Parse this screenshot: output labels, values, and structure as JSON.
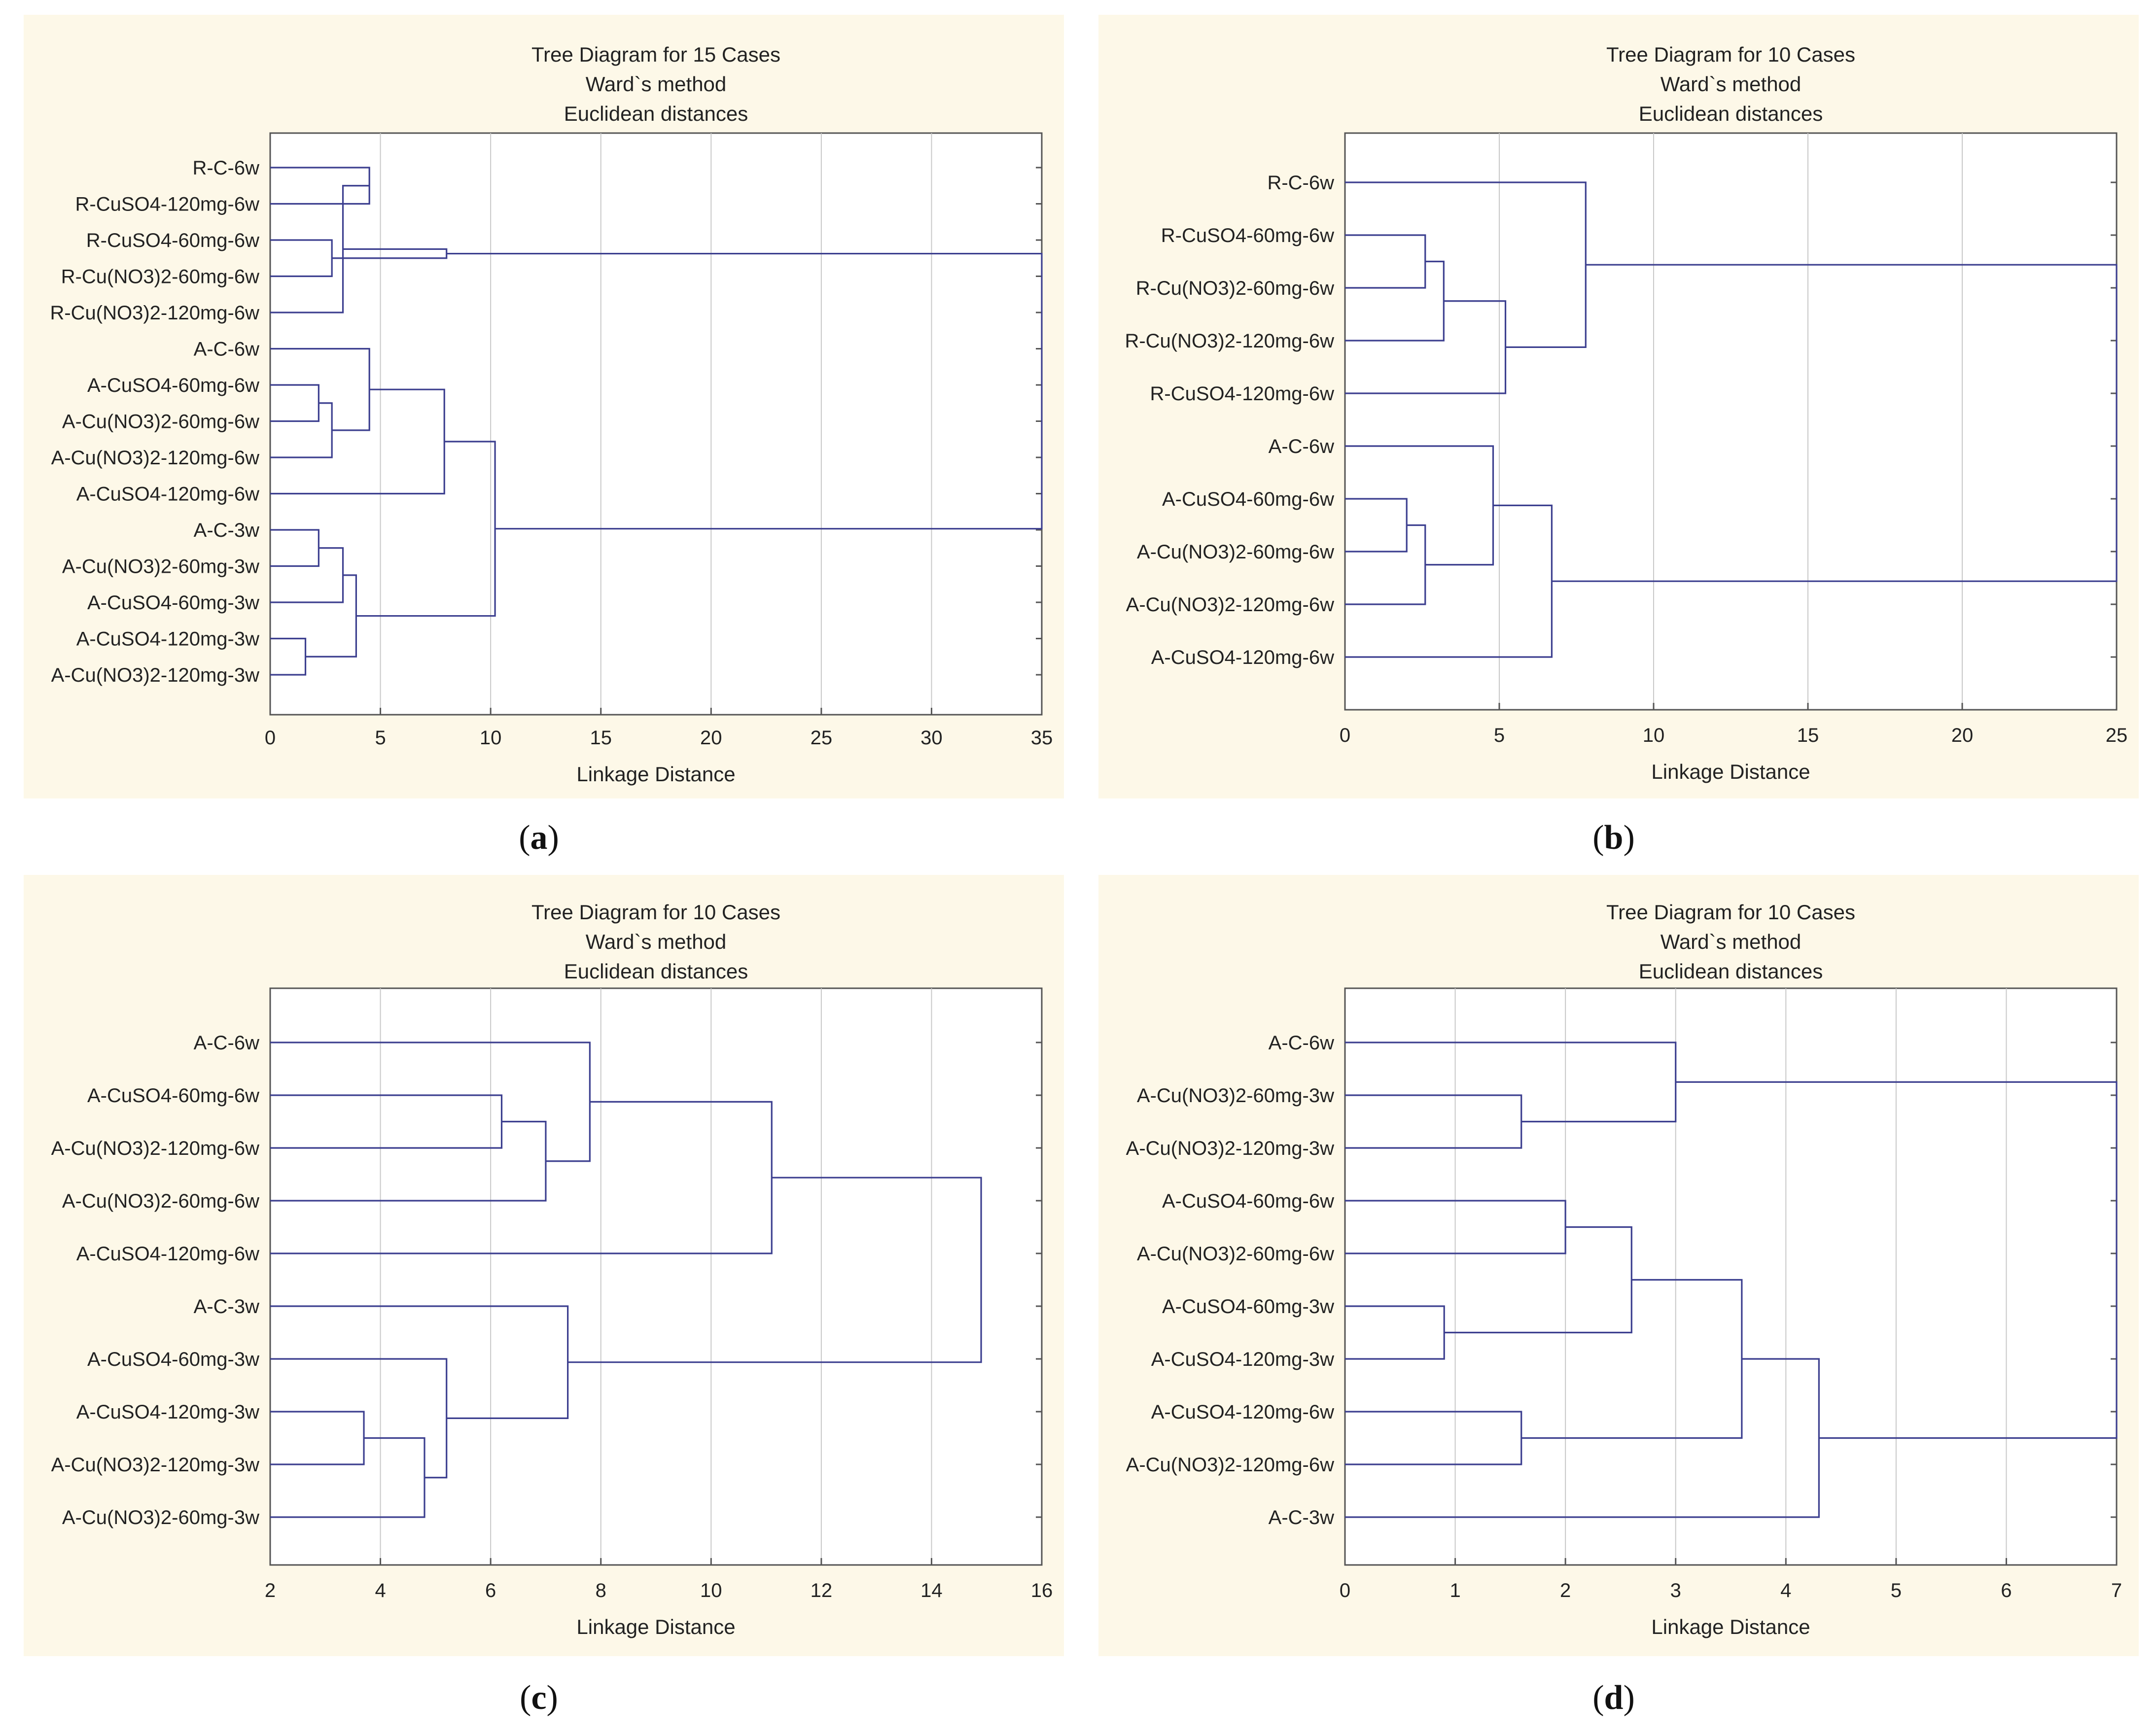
{
  "panel_labels": [
    "a",
    "b",
    "c",
    "d"
  ],
  "colors": {
    "panel_bg": "#fdf8e8",
    "plot_bg": "#ffffff",
    "tree_line": "#3c3f8f",
    "grid": "#c8c8c8",
    "axis": "#555555",
    "text": "#222222"
  },
  "chart_data": [
    {
      "type": "dendrogram",
      "title": "Tree Diagram for 15 Cases",
      "subtitle1": "Ward`s method",
      "subtitle2": "Euclidean distances",
      "xlabel": "Linkage Distance",
      "xlim": [
        0,
        35
      ],
      "xticks": [
        0,
        5,
        10,
        15,
        20,
        25,
        30,
        35
      ],
      "leaves": [
        "R-C-6w",
        "R-CuSO4-120mg-6w",
        "R-CuSO4-60mg-6w",
        "R-Cu(NO3)2-60mg-6w",
        "R-Cu(NO3)2-120mg-6w",
        "A-C-6w",
        "A-CuSO4-60mg-6w",
        "A-Cu(NO3)2-60mg-6w",
        "A-Cu(NO3)2-120mg-6w",
        "A-CuSO4-120mg-6w",
        "A-C-3w",
        "A-Cu(NO3)2-60mg-3w",
        "A-CuSO4-60mg-3w",
        "A-CuSO4-120mg-3w",
        "A-Cu(NO3)2-120mg-3w"
      ],
      "merges": [
        [
          0,
          1,
          4.5
        ],
        [
          2,
          3,
          2.8
        ],
        [
          15,
          4,
          3.3
        ],
        [
          16,
          17,
          8.0
        ],
        [
          6,
          7,
          2.2
        ],
        [
          19,
          8,
          2.8
        ],
        [
          5,
          20,
          4.5
        ],
        [
          21,
          9,
          7.9
        ],
        [
          10,
          11,
          2.2
        ],
        [
          23,
          12,
          3.3
        ],
        [
          13,
          14,
          1.6
        ],
        [
          24,
          25,
          3.9
        ],
        [
          22,
          26,
          10.2
        ],
        [
          18,
          27,
          35.0
        ]
      ]
    },
    {
      "type": "dendrogram",
      "title": "Tree Diagram for 10 Cases",
      "subtitle1": "Ward`s method",
      "subtitle2": "Euclidean distances",
      "xlabel": "Linkage Distance",
      "xlim": [
        0,
        25
      ],
      "xticks": [
        0,
        5,
        10,
        15,
        20,
        25
      ],
      "leaves": [
        "R-C-6w",
        "R-CuSO4-60mg-6w",
        "R-Cu(NO3)2-60mg-6w",
        "R-Cu(NO3)2-120mg-6w",
        "R-CuSO4-120mg-6w",
        "A-C-6w",
        "A-CuSO4-60mg-6w",
        "A-Cu(NO3)2-60mg-6w",
        "A-Cu(NO3)2-120mg-6w",
        "A-CuSO4-120mg-6w"
      ],
      "merges": [
        [
          1,
          2,
          2.6
        ],
        [
          10,
          3,
          3.2
        ],
        [
          11,
          4,
          5.2
        ],
        [
          0,
          12,
          7.8
        ],
        [
          6,
          7,
          2.0
        ],
        [
          14,
          8,
          2.6
        ],
        [
          5,
          15,
          4.8
        ],
        [
          16,
          9,
          6.7
        ],
        [
          13,
          17,
          25.0
        ]
      ]
    },
    {
      "type": "dendrogram",
      "title": "Tree Diagram for 10 Cases",
      "subtitle1": "Ward`s method",
      "subtitle2": "Euclidean distances",
      "xlabel": "Linkage Distance",
      "xlim": [
        2,
        16
      ],
      "xticks": [
        2,
        4,
        6,
        8,
        10,
        12,
        14,
        16
      ],
      "leaves": [
        "A-C-6w",
        "A-CuSO4-60mg-6w",
        "A-Cu(NO3)2-120mg-6w",
        "A-Cu(NO3)2-60mg-6w",
        "A-CuSO4-120mg-6w",
        "A-C-3w",
        "A-CuSO4-60mg-3w",
        "A-CuSO4-120mg-3w",
        "A-Cu(NO3)2-120mg-3w",
        "A-Cu(NO3)2-60mg-3w"
      ],
      "merges": [
        [
          1,
          2,
          6.2
        ],
        [
          10,
          3,
          7.0
        ],
        [
          0,
          11,
          7.8
        ],
        [
          12,
          4,
          11.1
        ],
        [
          7,
          8,
          3.7
        ],
        [
          14,
          9,
          4.8
        ],
        [
          6,
          15,
          5.2
        ],
        [
          5,
          16,
          7.4
        ],
        [
          13,
          17,
          14.9
        ]
      ]
    },
    {
      "type": "dendrogram",
      "title": "Tree Diagram for 10 Cases",
      "subtitle1": "Ward`s method",
      "subtitle2": "Euclidean distances",
      "xlabel": "Linkage Distance",
      "xlim": [
        0,
        7
      ],
      "xticks": [
        0,
        1,
        2,
        3,
        4,
        5,
        6,
        7
      ],
      "leaves": [
        "A-C-6w",
        "A-Cu(NO3)2-60mg-3w",
        "A-Cu(NO3)2-120mg-3w",
        "A-CuSO4-60mg-6w",
        "A-Cu(NO3)2-60mg-6w",
        "A-CuSO4-60mg-3w",
        "A-CuSO4-120mg-3w",
        "A-CuSO4-120mg-6w",
        "A-Cu(NO3)2-120mg-6w",
        "A-C-3w"
      ],
      "merges": [
        [
          1,
          2,
          1.6
        ],
        [
          0,
          10,
          3.0
        ],
        [
          3,
          4,
          2.0
        ],
        [
          5,
          6,
          0.9
        ],
        [
          12,
          13,
          2.6
        ],
        [
          7,
          8,
          1.6
        ],
        [
          14,
          15,
          3.6
        ],
        [
          16,
          9,
          4.3
        ],
        [
          11,
          17,
          7.0
        ]
      ]
    }
  ]
}
